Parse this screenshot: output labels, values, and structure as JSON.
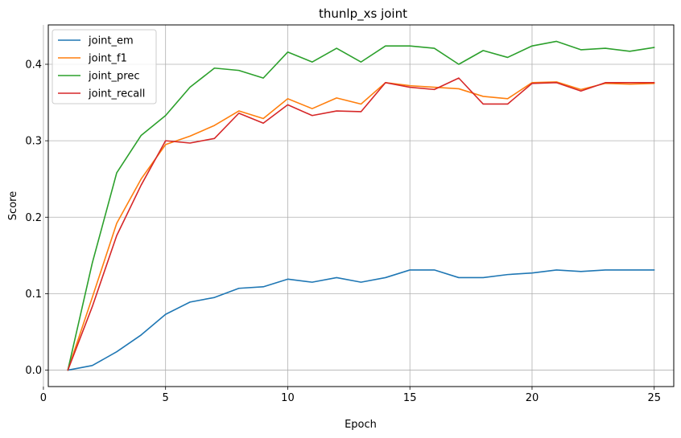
{
  "chart_data": {
    "type": "line",
    "title": "thunlp_xs joint",
    "xlabel": "Epoch",
    "ylabel": "Score",
    "xlim": [
      0.2,
      25.8
    ],
    "ylim": [
      -0.0215,
      0.4515
    ],
    "xticks": [
      0,
      5,
      10,
      15,
      20,
      25
    ],
    "yticks": [
      0.0,
      0.1,
      0.2,
      0.3,
      0.4
    ],
    "grid": true,
    "legend_position": "top-left",
    "x": [
      1,
      2,
      3,
      4,
      5,
      6,
      7,
      8,
      9,
      10,
      11,
      12,
      13,
      14,
      15,
      16,
      17,
      18,
      19,
      20,
      21,
      22,
      23,
      24,
      25
    ],
    "series": [
      {
        "name": "joint_em",
        "color": "#1f77b4",
        "values": [
          0.0,
          0.006,
          0.024,
          0.046,
          0.073,
          0.089,
          0.095,
          0.107,
          0.109,
          0.119,
          0.115,
          0.121,
          0.115,
          0.121,
          0.131,
          0.131,
          0.121,
          0.121,
          0.125,
          0.127,
          0.131,
          0.129,
          0.131,
          0.131,
          0.131
        ]
      },
      {
        "name": "joint_f1",
        "color": "#ff7f0e",
        "values": [
          0.0,
          0.095,
          0.192,
          0.25,
          0.295,
          0.306,
          0.32,
          0.339,
          0.329,
          0.355,
          0.342,
          0.356,
          0.348,
          0.376,
          0.372,
          0.37,
          0.368,
          0.358,
          0.355,
          0.376,
          0.377,
          0.367,
          0.375,
          0.374,
          0.375
        ]
      },
      {
        "name": "joint_prec",
        "color": "#2ca02c",
        "values": [
          0.0,
          0.14,
          0.258,
          0.307,
          0.333,
          0.37,
          0.395,
          0.392,
          0.382,
          0.416,
          0.403,
          0.421,
          0.403,
          0.424,
          0.424,
          0.421,
          0.4,
          0.418,
          0.409,
          0.424,
          0.43,
          0.419,
          0.421,
          0.417,
          0.422
        ]
      },
      {
        "name": "joint_recall",
        "color": "#d62728",
        "values": [
          0.0,
          0.083,
          0.176,
          0.242,
          0.3,
          0.297,
          0.303,
          0.336,
          0.323,
          0.347,
          0.333,
          0.339,
          0.338,
          0.376,
          0.37,
          0.367,
          0.382,
          0.348,
          0.348,
          0.375,
          0.376,
          0.365,
          0.376,
          0.376,
          0.376
        ]
      }
    ]
  }
}
